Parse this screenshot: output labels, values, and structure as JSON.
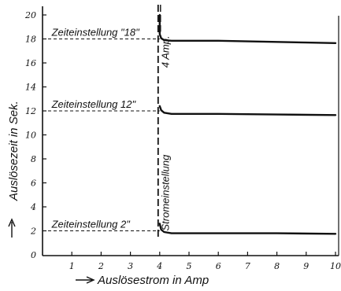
{
  "chart_data": {
    "type": "line",
    "title": "",
    "xlabel": "Auslösestrom in Amp",
    "ylabel": "Auslösezeit in Sek.",
    "xlim": [
      0,
      10
    ],
    "ylim": [
      0,
      20
    ],
    "x_ticks": [
      "1",
      "2",
      "3",
      "4",
      "5",
      "6",
      "7",
      "8",
      "9",
      "10"
    ],
    "y_ticks": [
      "0",
      "2",
      "4",
      "6",
      "8",
      "10",
      "12",
      "14",
      "16",
      "18",
      "20"
    ],
    "grid": false,
    "series": [
      {
        "points": [
          [
            4.0,
            20.0
          ],
          [
            4.0,
            18.4
          ],
          [
            4.05,
            18.05
          ],
          [
            4.15,
            17.9
          ],
          [
            4.4,
            17.85
          ],
          [
            6,
            17.85
          ],
          [
            7,
            17.8
          ],
          [
            8,
            17.75
          ],
          [
            9,
            17.7
          ],
          [
            10,
            17.65
          ]
        ]
      },
      {
        "points": [
          [
            4.0,
            12.4
          ],
          [
            4.05,
            12.05
          ],
          [
            4.15,
            11.85
          ],
          [
            4.4,
            11.75
          ],
          [
            6,
            11.75
          ],
          [
            8,
            11.7
          ],
          [
            10,
            11.65
          ]
        ]
      },
      {
        "points": [
          [
            4.0,
            2.6
          ],
          [
            4.05,
            2.1
          ],
          [
            4.15,
            1.9
          ],
          [
            4.4,
            1.8
          ],
          [
            6,
            1.8
          ],
          [
            8,
            1.8
          ],
          [
            10,
            1.75
          ]
        ]
      }
    ],
    "annotations": [
      {
        "text": "Zeiteinstellung \"18\"",
        "x": 0.15,
        "y": 18.25
      },
      {
        "text": "Zeiteinstellung 12\"",
        "x": 0.15,
        "y": 12.25
      },
      {
        "text": "Zeiteinstellung 2\"",
        "x": 0.15,
        "y": 2.25
      },
      {
        "text": "Stromeinstellung",
        "x": 4.05,
        "y": 2.0
      },
      {
        "text": "4 Amp.",
        "x": 4.05,
        "y": 15.6
      }
    ],
    "reference_lines": [
      {
        "x0": 0,
        "x1": 4.0,
        "y": 18
      },
      {
        "x0": 0,
        "x1": 4.0,
        "y": 12
      },
      {
        "x0": 0,
        "x1": 4.0,
        "y": 2
      }
    ],
    "threshold_x": 4.0
  }
}
